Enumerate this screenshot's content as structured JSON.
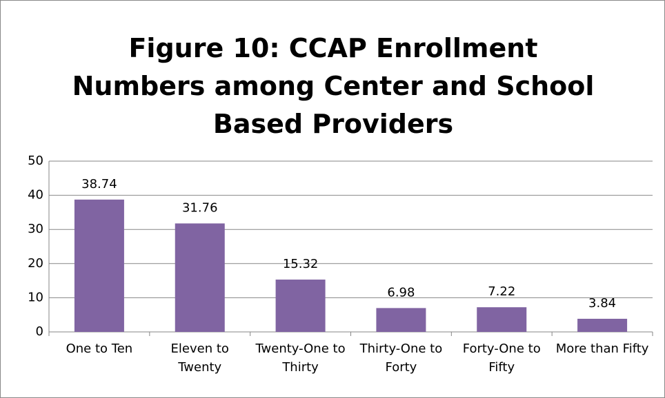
{
  "chart_data": {
    "type": "bar",
    "title": "Figure 10:  CCAP Enrollment Numbers among Center and School Based Providers",
    "categories": [
      "One to Ten",
      "Eleven to Twenty",
      "Twenty-One to Thirty",
      "Thirty-One to Forty",
      "Forty-One to Fifty",
      "More than Fifty"
    ],
    "values": [
      38.74,
      31.76,
      15.32,
      6.98,
      7.22,
      3.84
    ],
    "color": "#8064a2",
    "ylim": [
      0,
      50
    ],
    "yticks": [
      0,
      10,
      20,
      30,
      40,
      50
    ],
    "grid": true
  }
}
